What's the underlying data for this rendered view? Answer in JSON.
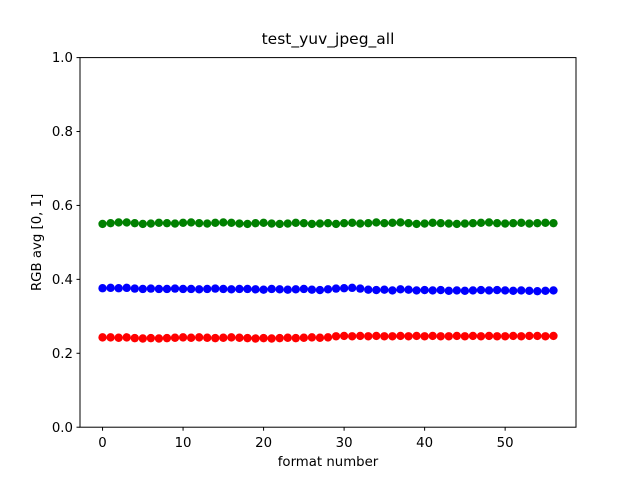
{
  "chart_data": {
    "type": "scatter",
    "title": "test_yuv_jpeg_all",
    "xlabel": "format number",
    "ylabel": "RGB avg [0, 1]",
    "xlim": [
      -2.8,
      58.8
    ],
    "ylim": [
      0.0,
      1.0
    ],
    "grid": false,
    "legend": "none",
    "x_tick_labels": [
      "0",
      "10",
      "20",
      "30",
      "40",
      "50"
    ],
    "x_tick_values": [
      0,
      10,
      20,
      30,
      40,
      50
    ],
    "y_tick_labels": [
      "0.0",
      "0.2",
      "0.4",
      "0.6",
      "0.8",
      "1.0"
    ],
    "y_tick_values": [
      0.0,
      0.2,
      0.4,
      0.6,
      0.8,
      1.0
    ],
    "x": [
      0,
      1,
      2,
      3,
      4,
      5,
      6,
      7,
      8,
      9,
      10,
      11,
      12,
      13,
      14,
      15,
      16,
      17,
      18,
      19,
      20,
      21,
      22,
      23,
      24,
      25,
      26,
      27,
      28,
      29,
      30,
      31,
      32,
      33,
      34,
      35,
      36,
      37,
      38,
      39,
      40,
      41,
      42,
      43,
      44,
      45,
      46,
      47,
      48,
      49,
      50,
      51,
      52,
      53,
      54,
      55,
      56
    ],
    "series": [
      {
        "name": "red",
        "color": "#ff0000",
        "marker": "circle",
        "values": [
          0.243,
          0.243,
          0.242,
          0.243,
          0.241,
          0.24,
          0.241,
          0.24,
          0.241,
          0.242,
          0.243,
          0.242,
          0.243,
          0.242,
          0.241,
          0.242,
          0.243,
          0.242,
          0.241,
          0.24,
          0.241,
          0.24,
          0.241,
          0.242,
          0.241,
          0.242,
          0.243,
          0.242,
          0.243,
          0.246,
          0.247,
          0.246,
          0.247,
          0.246,
          0.247,
          0.246,
          0.246,
          0.247,
          0.246,
          0.247,
          0.246,
          0.247,
          0.246,
          0.246,
          0.247,
          0.246,
          0.247,
          0.246,
          0.247,
          0.246,
          0.246,
          0.247,
          0.246,
          0.247,
          0.247,
          0.246,
          0.247
        ]
      },
      {
        "name": "green",
        "color": "#008000",
        "marker": "circle",
        "values": [
          0.55,
          0.552,
          0.554,
          0.554,
          0.552,
          0.55,
          0.551,
          0.553,
          0.552,
          0.551,
          0.553,
          0.554,
          0.552,
          0.551,
          0.553,
          0.554,
          0.553,
          0.551,
          0.55,
          0.552,
          0.553,
          0.551,
          0.55,
          0.551,
          0.553,
          0.552,
          0.55,
          0.551,
          0.552,
          0.55,
          0.552,
          0.553,
          0.551,
          0.552,
          0.554,
          0.552,
          0.553,
          0.554,
          0.552,
          0.55,
          0.551,
          0.553,
          0.552,
          0.551,
          0.55,
          0.551,
          0.552,
          0.553,
          0.554,
          0.552,
          0.551,
          0.552,
          0.553,
          0.551,
          0.552,
          0.553,
          0.552
        ]
      },
      {
        "name": "blue",
        "color": "#0000ff",
        "marker": "circle",
        "values": [
          0.376,
          0.377,
          0.376,
          0.377,
          0.375,
          0.374,
          0.375,
          0.374,
          0.374,
          0.375,
          0.374,
          0.374,
          0.373,
          0.374,
          0.375,
          0.374,
          0.373,
          0.374,
          0.374,
          0.373,
          0.372,
          0.374,
          0.373,
          0.372,
          0.373,
          0.374,
          0.372,
          0.371,
          0.373,
          0.375,
          0.376,
          0.377,
          0.375,
          0.372,
          0.371,
          0.372,
          0.37,
          0.373,
          0.372,
          0.37,
          0.371,
          0.37,
          0.371,
          0.369,
          0.37,
          0.369,
          0.37,
          0.371,
          0.37,
          0.371,
          0.37,
          0.369,
          0.37,
          0.369,
          0.368,
          0.369,
          0.37
        ]
      }
    ],
    "frame_color": "#000000",
    "background_color": "#ffffff",
    "marker_radius_px": 4.2
  }
}
